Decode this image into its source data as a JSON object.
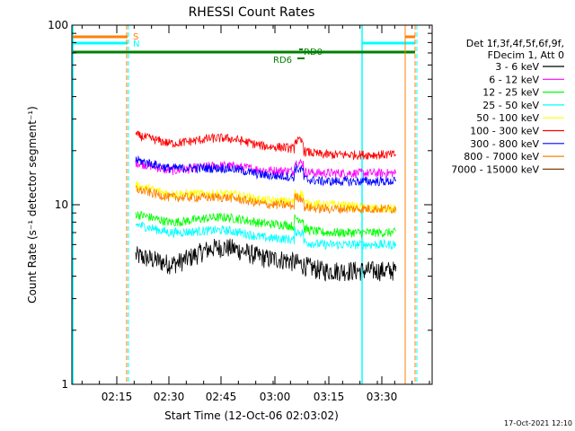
{
  "chart_data": {
    "type": "line",
    "title": "RHESSI Count Rates",
    "xlabel": "Start Time (12-Oct-06 02:03:02)",
    "ylabel": "Count Rate (s⁻¹ detector segment⁻¹)",
    "yscale": "log",
    "ylim": [
      1,
      100
    ],
    "xlim_minutes": [
      2.03,
      3.66
    ],
    "x_tick_labels": [
      "02:15",
      "02:30",
      "02:45",
      "03:00",
      "03:15",
      "03:30"
    ],
    "y_tick_labels": [
      "1",
      "10",
      "100"
    ],
    "timestamp": "17-Oct-2021 12:10",
    "legend_header": [
      "Det 1f,3f,4f,5f,6f,9f,",
      "FDecim 1, Att 0"
    ],
    "series": [
      {
        "name": "3 - 6 keV",
        "color": "#000000",
        "values_at_ticks": [
          null,
          4.7,
          5.8,
          5.0,
          4.3,
          4.3
        ]
      },
      {
        "name": "6 - 12 keV",
        "color": "#ff00ff",
        "values_at_ticks": [
          null,
          15.5,
          16.5,
          15.5,
          15.0,
          15.0
        ]
      },
      {
        "name": "12 - 25 keV",
        "color": "#00ff00",
        "values_at_ticks": [
          null,
          8.0,
          8.5,
          7.8,
          7.0,
          7.0
        ]
      },
      {
        "name": "25 - 50 keV",
        "color": "#00ffff",
        "values_at_ticks": [
          null,
          7.0,
          7.2,
          6.5,
          6.0,
          6.0
        ]
      },
      {
        "name": "50 - 100 keV",
        "color": "#ffff00",
        "values_at_ticks": [
          null,
          11.5,
          11.5,
          10.5,
          10.0,
          9.5
        ]
      },
      {
        "name": "100 - 300 keV",
        "color": "#ff0000",
        "values_at_ticks": [
          null,
          22.0,
          23.5,
          21.0,
          19.0,
          19.0
        ]
      },
      {
        "name": "300 - 800 keV",
        "color": "#0000ff",
        "values_at_ticks": [
          null,
          16.0,
          16.0,
          14.5,
          13.5,
          13.5
        ]
      },
      {
        "name": "800 - 7000 keV",
        "color": "#ff8000",
        "values_at_ticks": [
          null,
          11.0,
          11.0,
          10.0,
          9.5,
          9.5
        ]
      },
      {
        "name": "7000 - 15000 keV",
        "color": "#804000",
        "values_at_ticks": [
          null,
          null,
          null,
          null,
          null,
          null
        ]
      }
    ],
    "annotations": [
      {
        "text": "S",
        "color": "#ff8000"
      },
      {
        "text": "N",
        "color": "#00ffff"
      },
      {
        "text": "RD0",
        "color": "#008000"
      },
      {
        "text": "RD6",
        "color": "#008000"
      }
    ]
  }
}
